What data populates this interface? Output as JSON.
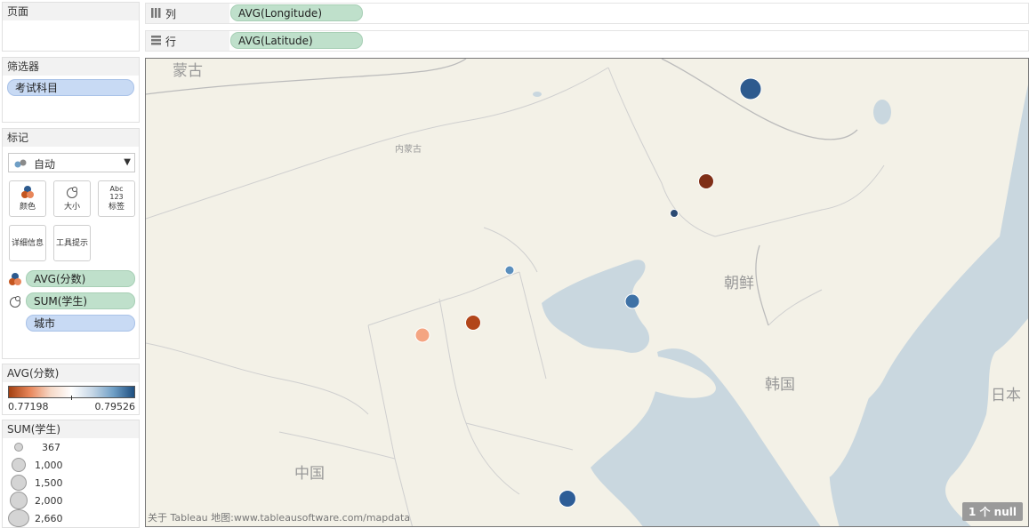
{
  "pages": {
    "title": "页面"
  },
  "filters": {
    "title": "筛选器",
    "items": [
      {
        "label": "考试科目"
      }
    ]
  },
  "marks": {
    "title": "标记",
    "mark_type": "自动",
    "buttons": {
      "color": "颜色",
      "size": "大小",
      "label": "标签",
      "detail": "详细信息",
      "tooltip": "工具提示",
      "label_icon_text1": "Abc",
      "label_icon_text2": "123"
    },
    "fields": {
      "color": "AVG(分数)",
      "size": "SUM(学生)",
      "detail": "城市"
    }
  },
  "color_legend": {
    "title": "AVG(分数)",
    "min": "0.77198",
    "max": "0.79526",
    "colors": [
      "#a33f10",
      "#e8865a",
      "#f6d9c8",
      "#ffffff",
      "#c5d6e6",
      "#6f9fc6",
      "#1d4e7f"
    ]
  },
  "size_legend": {
    "title": "SUM(学生)",
    "items": [
      {
        "label": "367"
      },
      {
        "label": "1,000"
      },
      {
        "label": "1,500"
      },
      {
        "label": "2,000"
      },
      {
        "label": "2,660"
      }
    ]
  },
  "shelves": {
    "columns": {
      "label": "列",
      "pill": "AVG(Longitude)"
    },
    "rows": {
      "label": "行",
      "pill": "AVG(Latitude)"
    }
  },
  "map": {
    "labels": {
      "mongolia": "蒙古",
      "inner_mongolia": "内蒙古",
      "china": "中国",
      "north_korea": "朝鲜",
      "south_korea": "韩国",
      "japan": "日本"
    },
    "attribution": "关于 Tableau 地图:www.tableausoftware.com/mapdata",
    "null_indicator": "1 个 null",
    "points": [
      {
        "color": "#2d5a8e"
      },
      {
        "color": "#7f2f17"
      },
      {
        "color": "#2b4a73"
      },
      {
        "color": "#5b8fbd"
      },
      {
        "color": "#3f72a6"
      },
      {
        "color": "#b2461a"
      },
      {
        "color": "#f4a582"
      },
      {
        "color": "#2d5d97"
      }
    ]
  }
}
